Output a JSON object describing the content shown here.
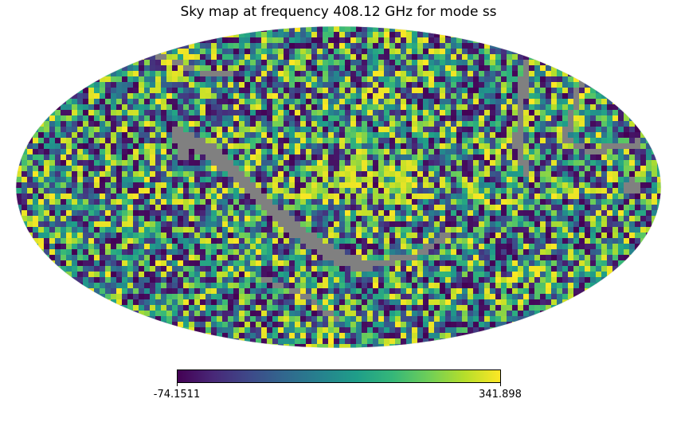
{
  "chart_data": {
    "type": "heatmap",
    "projection": "mollweide",
    "title": "Sky map at frequency 408.12 GHz for mode ss",
    "colormap": "viridis",
    "masked_color": "#808080",
    "colorbar": {
      "min": -74.1511,
      "max": 341.898,
      "min_label": "-74.1511",
      "max_label": "341.898",
      "orientation": "horizontal",
      "placement": "bottom"
    },
    "viridis_stops": [
      "#440154",
      "#482878",
      "#3e4989",
      "#31688e",
      "#26828e",
      "#1f9e89",
      "#35b779",
      "#6ece58",
      "#b5de2b",
      "#fde725"
    ]
  }
}
